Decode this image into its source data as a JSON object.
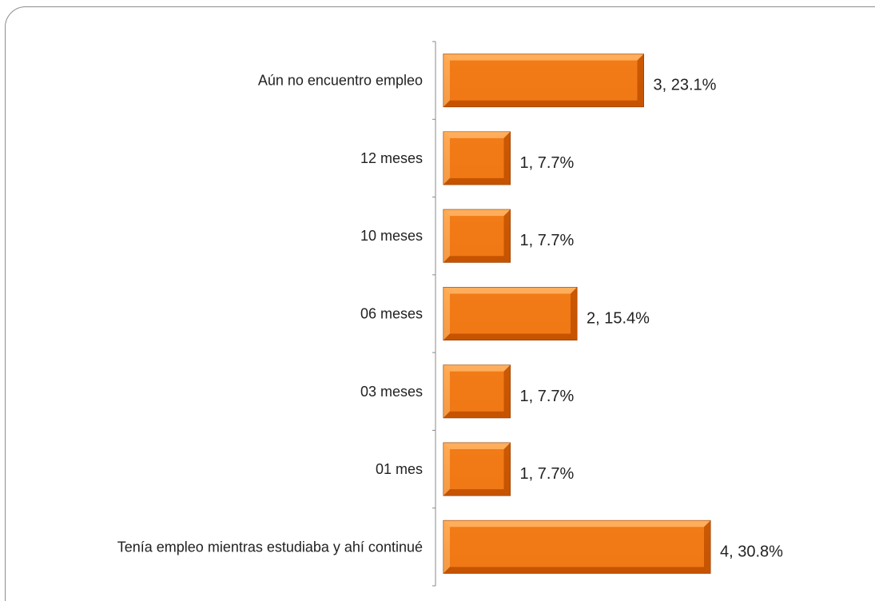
{
  "chart_data": {
    "type": "bar",
    "title": "",
    "orientation": "horizontal",
    "categories": [
      "Aún no encuentro empleo",
      "12 meses",
      "10 meses",
      "06 meses",
      "03 meses",
      "01 mes",
      "Tenía empleo mientras estudiaba y ahí continué"
    ],
    "values": [
      3,
      1,
      1,
      2,
      1,
      1,
      4
    ],
    "percentages": [
      "23.1%",
      "7.7%",
      "7.7%",
      "15.4%",
      "7.7%",
      "7.7%",
      "30.8%"
    ],
    "data_labels": [
      "3, 23.1%",
      "1, 7.7%",
      "1, 7.7%",
      "2, 15.4%",
      "1, 7.7%",
      "1, 7.7%",
      "4, 30.8%"
    ],
    "xlim": [
      0,
      4
    ],
    "xlabel": "",
    "ylabel": "",
    "grid": false,
    "legend": false,
    "bar_color": "#F07A17",
    "bar_light": "#FFB263",
    "bar_dark": "#C45200",
    "axis_color": "#8a8a8a"
  }
}
